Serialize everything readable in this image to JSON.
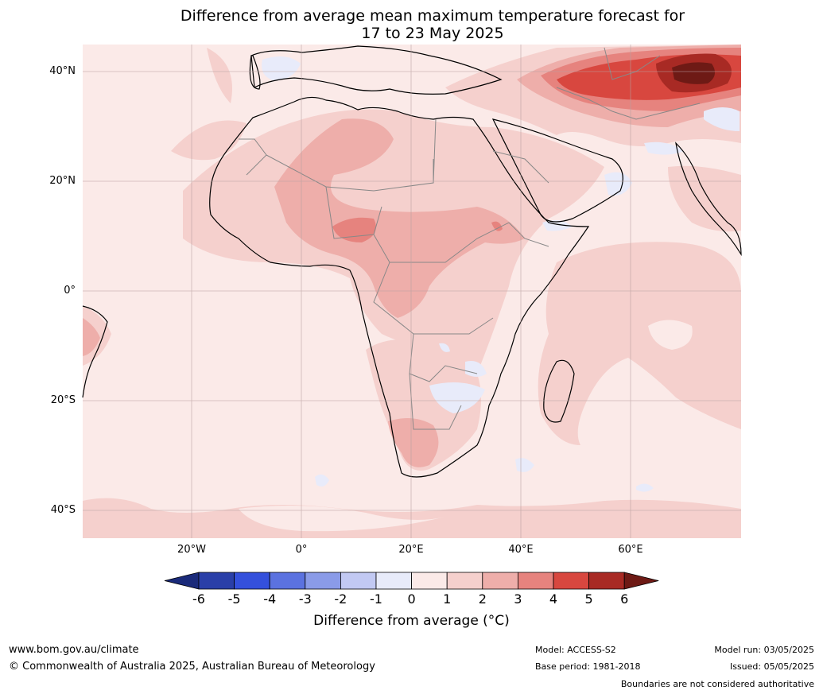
{
  "title_line1": "Difference from average mean maximum temperature forecast for",
  "title_line2": "17 to 23 May 2025",
  "lat_labels": [
    "40°N",
    "20°N",
    "0°",
    "20°S",
    "40°S"
  ],
  "lon_labels": [
    "20°W",
    "0°",
    "20°E",
    "40°E",
    "60°E"
  ],
  "colorbar": {
    "ticks": [
      "-6",
      "-5",
      "-4",
      "-3",
      "-2",
      "-1",
      "0",
      "1",
      "2",
      "3",
      "4",
      "5",
      "6"
    ],
    "colors": [
      "#1a2a7a",
      "#2a3fa8",
      "#3450dc",
      "#5b72e0",
      "#8a9be8",
      "#c2c9f3",
      "#e8ebfa",
      "#fbeae8",
      "#f5d0cd",
      "#eeaeaa",
      "#e6837e",
      "#d8473f",
      "#a82a24",
      "#6e1a15"
    ],
    "title": "Difference from average (°C)",
    "unit": "°C"
  },
  "footer": {
    "url": "www.bom.gov.au/climate",
    "copyright": "© Commonwealth of Australia 2025, Australian Bureau of Meteorology",
    "model": "Model: ACCESS-S2",
    "base_period": "Base period: 1981-2018",
    "model_run": "Model run: 03/05/2025",
    "issued": "Issued: 05/05/2025",
    "disclaimer": "Boundaries are not considered authoritative"
  }
}
